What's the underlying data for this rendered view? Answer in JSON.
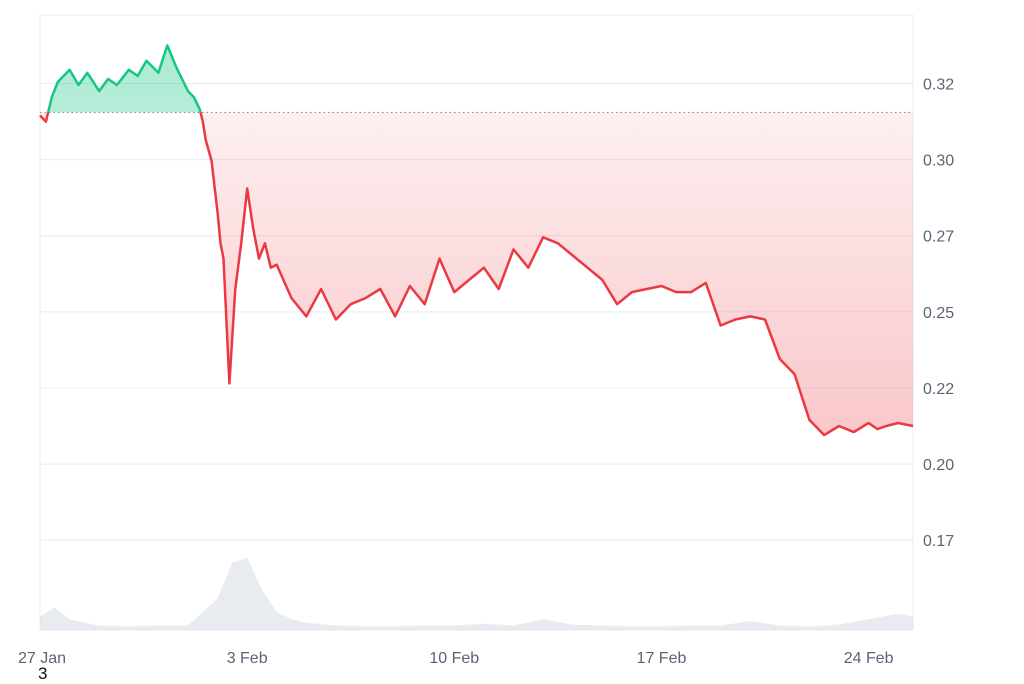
{
  "chart_data": {
    "type": "area",
    "x_ticks": [
      "27 Jan",
      "3 Feb",
      "10 Feb",
      "17 Feb",
      "24 Feb"
    ],
    "y_ticks": [
      "0.32",
      "0.30",
      "0.27",
      "0.25",
      "0.22",
      "0.20",
      "0.17"
    ],
    "ylim": [
      0.143,
      0.345
    ],
    "baseline": 0.313,
    "xlim_days": [
      0,
      29.5
    ],
    "grid": "horizontal",
    "colors": {
      "above": "#16c784",
      "below": "#ea3943",
      "volume": "#d5dbe3",
      "grid": "#e9ecf0",
      "tick_text": "#5b6475"
    },
    "price_series": {
      "x_days": [
        0,
        0.2,
        0.4,
        0.6,
        0.8,
        1.0,
        1.3,
        1.6,
        2.0,
        2.3,
        2.6,
        3.0,
        3.3,
        3.6,
        4.0,
        4.3,
        4.6,
        4.8,
        5.0,
        5.2,
        5.4,
        5.5,
        5.6,
        5.8,
        6.0,
        6.1,
        6.2,
        6.4,
        6.6,
        6.8,
        7.0,
        7.2,
        7.4,
        7.6,
        7.8,
        8.0,
        8.5,
        9.0,
        9.5,
        10.0,
        10.5,
        11.0,
        11.5,
        12.0,
        12.5,
        13.0,
        13.5,
        14.0,
        14.5,
        15.0,
        15.5,
        16.0,
        16.5,
        17.0,
        17.5,
        18.0,
        18.5,
        19.0,
        19.5,
        20.0,
        20.5,
        21.0,
        21.5,
        22.0,
        22.5,
        23.0,
        23.5,
        24.0,
        24.5,
        25.0,
        25.5,
        26.0,
        26.5,
        27.0,
        27.5,
        28.0,
        28.3,
        28.6,
        29.0,
        29.5
      ],
      "y": [
        0.312,
        0.31,
        0.318,
        0.323,
        0.325,
        0.327,
        0.322,
        0.326,
        0.32,
        0.324,
        0.322,
        0.327,
        0.325,
        0.33,
        0.326,
        0.335,
        0.328,
        0.324,
        0.32,
        0.318,
        0.314,
        0.31,
        0.304,
        0.297,
        0.28,
        0.27,
        0.265,
        0.224,
        0.255,
        0.27,
        0.288,
        0.275,
        0.265,
        0.27,
        0.262,
        0.263,
        0.252,
        0.246,
        0.255,
        0.245,
        0.25,
        0.252,
        0.255,
        0.246,
        0.256,
        0.25,
        0.265,
        0.254,
        0.258,
        0.262,
        0.255,
        0.268,
        0.262,
        0.272,
        0.27,
        0.266,
        0.262,
        0.258,
        0.25,
        0.254,
        0.255,
        0.256,
        0.254,
        0.254,
        0.257,
        0.243,
        0.245,
        0.246,
        0.245,
        0.232,
        0.227,
        0.212,
        0.207,
        0.21,
        0.208,
        0.211,
        0.209,
        0.21,
        0.211,
        0.21
      ]
    },
    "volume_series": {
      "x_days": [
        0,
        0.5,
        1,
        1.5,
        2,
        3,
        4,
        5,
        6,
        6.5,
        7,
        7.5,
        8,
        8.5,
        9,
        10,
        11,
        12,
        13,
        14,
        15,
        16,
        17,
        18,
        19,
        20,
        21,
        22,
        23,
        24,
        25,
        26,
        27,
        28,
        29,
        29.5
      ],
      "v": [
        0.15,
        0.25,
        0.12,
        0.08,
        0.05,
        0.04,
        0.05,
        0.05,
        0.35,
        0.75,
        0.8,
        0.45,
        0.2,
        0.12,
        0.08,
        0.05,
        0.04,
        0.04,
        0.05,
        0.05,
        0.07,
        0.05,
        0.12,
        0.06,
        0.05,
        0.04,
        0.04,
        0.05,
        0.05,
        0.1,
        0.05,
        0.04,
        0.06,
        0.12,
        0.18,
        0.15
      ]
    },
    "footnote": "3"
  }
}
